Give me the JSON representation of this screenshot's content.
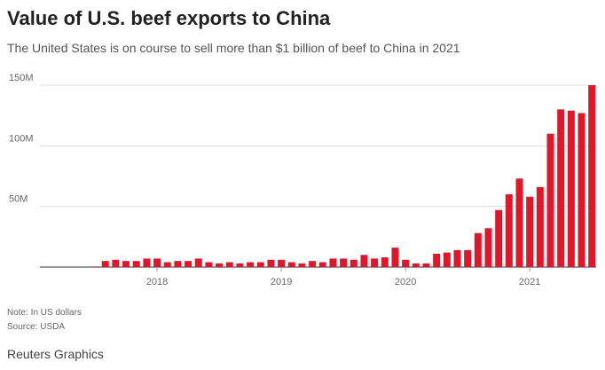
{
  "chart_data": {
    "type": "bar",
    "title": "Value of U.S. beef exports to China",
    "subtitle": "The United States is on course to sell more than $1 billion of beef to China in 2021",
    "note": "Note: In US dollars",
    "source": "Source: USDA",
    "credit": "Reuters Graphics",
    "categories": [
      null,
      null,
      null,
      null,
      null,
      null,
      "2018",
      null,
      null,
      null,
      null,
      null,
      null,
      null,
      null,
      null,
      null,
      null,
      "2019",
      null,
      null,
      null,
      null,
      null,
      null,
      null,
      null,
      null,
      null,
      null,
      "2020",
      null,
      null,
      null,
      null,
      null,
      null,
      null,
      null,
      null,
      null,
      null,
      "2021",
      null,
      null,
      null,
      null,
      null,
      null
    ],
    "values": [
      500000,
      5000000,
      6000000,
      5000000,
      5000000,
      7000000,
      7000000,
      4000000,
      5000000,
      5000000,
      7000000,
      4000000,
      3000000,
      4000000,
      3000000,
      4000000,
      4000000,
      6000000,
      6000000,
      4000000,
      3000000,
      5000000,
      4000000,
      7000000,
      7000000,
      6000000,
      10000000,
      7000000,
      8000000,
      16000000,
      6000000,
      3000000,
      3000000,
      11000000,
      12000000,
      14000000,
      14000000,
      28000000,
      32000000,
      47000000,
      60000000,
      73000000,
      58000000,
      66000000,
      110000000,
      130000000,
      129000000,
      127000000,
      150000000
    ],
    "color": "#e0162b",
    "ylim": [
      0,
      150000000
    ],
    "yticks": [
      {
        "value": 50000000,
        "label": "50M"
      },
      {
        "value": 100000000,
        "label": "100M"
      },
      {
        "value": 150000000,
        "label": "150M"
      }
    ],
    "grid": true
  }
}
